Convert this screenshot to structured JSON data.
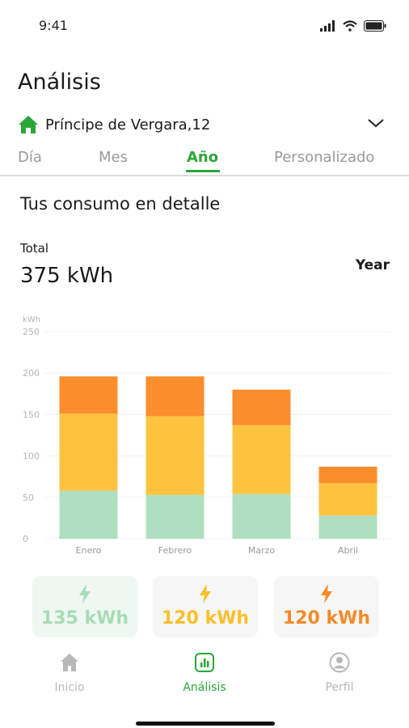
{
  "status_bar": {
    "time": "9:41"
  },
  "page": {
    "title": "Análisis"
  },
  "address": {
    "name": "Príncipe de Vergara,12"
  },
  "tabs": [
    {
      "label": "Día",
      "active": false
    },
    {
      "label": "Mes",
      "active": false
    },
    {
      "label": "Año",
      "active": true
    },
    {
      "label": "Personalizado",
      "active": false
    }
  ],
  "section": {
    "title": "Tus consumo en detalle",
    "total_label": "Total",
    "total_value": "375 kWh",
    "period": "Year"
  },
  "chart_data": {
    "type": "bar",
    "stacked": true,
    "categories": [
      "Enero",
      "Febrero",
      "Marzo",
      "Abril"
    ],
    "series": [
      {
        "values": [
          58,
          53,
          54,
          28
        ],
        "color": "#b0dfbf"
      },
      {
        "values": [
          93,
          95,
          83,
          39
        ],
        "color": "#fdc33f"
      },
      {
        "values": [
          45,
          48,
          43,
          20
        ],
        "color": "#fc8d2c"
      }
    ],
    "ylabel": "kWh",
    "ylim": [
      0,
      250
    ],
    "yticks": [
      0,
      50,
      100,
      150,
      200,
      250
    ],
    "grid": true
  },
  "cards": [
    {
      "value": "135 kWh",
      "color": "#a6dcb6",
      "icon": "bolt-icon"
    },
    {
      "value": "120 kWh",
      "color": "#f9c02a",
      "icon": "bolt-icon"
    },
    {
      "value": "120 kWh",
      "color": "#f38b2a",
      "icon": "bolt-icon"
    }
  ],
  "bottom_nav": [
    {
      "label": "Inicio",
      "icon": "home-icon",
      "active": false
    },
    {
      "label": "Análisis",
      "icon": "analytics-icon",
      "active": true
    },
    {
      "label": "Perfil",
      "icon": "profile-icon",
      "active": false
    }
  ],
  "colors": {
    "accent": "#2aa63a",
    "inactive": "#b8b8b8"
  }
}
